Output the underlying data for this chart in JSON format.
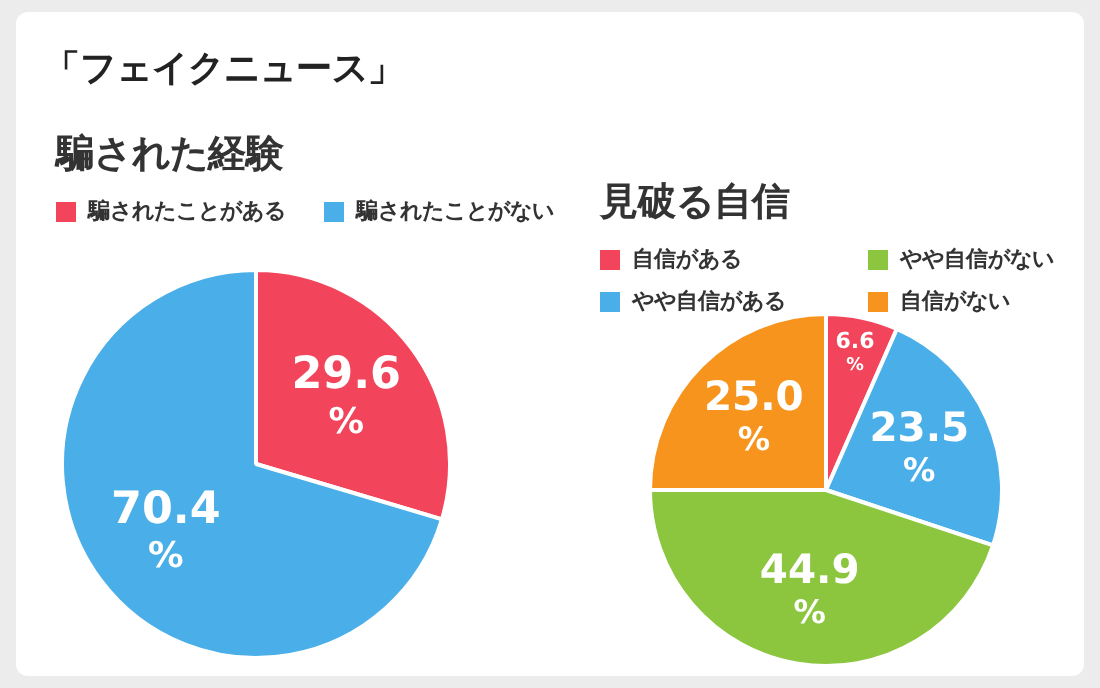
{
  "chart_data": [
    {
      "type": "pie",
      "title": "騙された経験",
      "annotations": [
        "「フェイクニュース」"
      ],
      "categories": [
        "騙されたことがある",
        "騙されたことがない"
      ],
      "values": [
        29.6,
        70.4
      ],
      "colors": [
        "#f2445a",
        "#4aaee8"
      ],
      "value_labels": [
        "29.6%",
        "70.4%"
      ],
      "legend": "top"
    },
    {
      "type": "pie",
      "title": "見破る自信",
      "categories": [
        "自信がある",
        "やや自信がある",
        "やや自信がない",
        "自信がない"
      ],
      "values": [
        6.6,
        23.5,
        44.9,
        25.0
      ],
      "colors": [
        "#f2445a",
        "#4aaee8",
        "#8cc63f",
        "#f7941d"
      ],
      "value_labels": [
        "6.6%",
        "23.5%",
        "44.9%",
        "25.0%"
      ],
      "legend": "top"
    }
  ]
}
